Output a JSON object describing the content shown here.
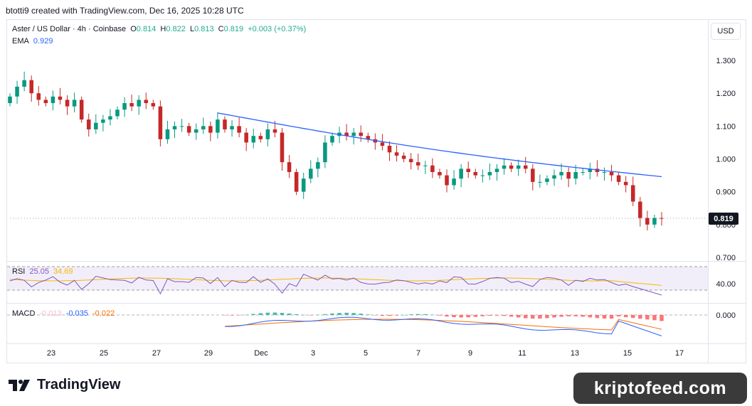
{
  "header": {
    "attribution": "btotti9 created with TradingView.com, Dec 16, 2025 10:28 UTC"
  },
  "legend": {
    "symbol": "Aster / US Dollar · 4h · Coinbase",
    "o_label": "O",
    "o_value": "0.814",
    "h_label": "H",
    "h_value": "0.822",
    "l_label": "L",
    "l_value": "0.813",
    "c_label": "C",
    "c_value": "0.819",
    "change": "+0.003 (+0.37%)",
    "ema_label": "EMA",
    "ema_value": "0.929"
  },
  "rsi_legend": {
    "label": "RSI",
    "value": "25.05",
    "ma_value": "34.69"
  },
  "macd_legend": {
    "label": "MACD",
    "hist_value": "-0.013",
    "macd_value": "-0.035",
    "signal_value": "-0.022"
  },
  "currency_button": "USD",
  "last_price": "0.819",
  "footer": {
    "logo_text": "TradingView",
    "watermark": "kriptofeed.com"
  },
  "colors": {
    "up": "#22ab94",
    "down": "#f23645",
    "up_candle": "#089981",
    "down_candle": "#c62828",
    "ema": "#2962ff",
    "rsi": "#7e57c2",
    "rsi_ma": "#f5b800",
    "macd": "#2962ff",
    "signal": "#ff6d00"
  },
  "chart_data": [
    {
      "type": "candlestick",
      "title": "Aster / US Dollar · 4h · Coinbase",
      "x_tick_labels": [
        "23",
        "25",
        "27",
        "29",
        "Dec",
        "3",
        "5",
        "7",
        "9",
        "11",
        "13",
        "15",
        "17"
      ],
      "y_tick_labels": [
        "1.300",
        "1.200",
        "1.100",
        "1.000",
        "0.900",
        "0.800",
        "0.700"
      ],
      "ylim": [
        0.7,
        1.3
      ],
      "close_series": [
        1.19,
        1.22,
        1.24,
        1.2,
        1.18,
        1.17,
        1.19,
        1.18,
        1.16,
        1.18,
        1.12,
        1.09,
        1.11,
        1.12,
        1.13,
        1.15,
        1.17,
        1.16,
        1.18,
        1.17,
        1.16,
        1.06,
        1.09,
        1.1,
        1.1,
        1.08,
        1.09,
        1.1,
        1.08,
        1.12,
        1.09,
        1.1,
        1.08,
        1.05,
        1.07,
        1.06,
        1.09,
        1.08,
        0.99,
        0.96,
        0.9,
        0.94,
        0.97,
        0.99,
        1.05,
        1.07,
        1.08,
        1.07,
        1.08,
        1.07,
        1.06,
        1.05,
        1.04,
        1.02,
        1.01,
        1.0,
        0.99,
        0.98,
        0.98,
        0.96,
        0.95,
        0.92,
        0.94,
        0.97,
        0.96,
        0.95,
        0.95,
        0.96,
        0.97,
        0.98,
        0.97,
        0.98,
        0.97,
        0.93,
        0.93,
        0.94,
        0.95,
        0.96,
        0.94,
        0.96,
        0.96,
        0.97,
        0.96,
        0.96,
        0.95,
        0.93,
        0.92,
        0.87,
        0.82,
        0.8,
        0.82,
        0.819
      ],
      "series": [
        {
          "name": "EMA",
          "value_at_last": 0.929,
          "start": 1.14,
          "end": 0.929
        }
      ],
      "last_price": 0.819
    },
    {
      "type": "line",
      "title": "RSI",
      "y_tick_labels": [
        "40.00"
      ],
      "series": [
        {
          "name": "RSI",
          "last": 25.05
        },
        {
          "name": "RSI MA",
          "last": 34.69
        }
      ]
    },
    {
      "type": "bar",
      "title": "MACD",
      "y_tick_labels": [
        "0.000"
      ],
      "series": [
        {
          "name": "Histogram",
          "last": -0.013
        },
        {
          "name": "MACD",
          "last": -0.035
        },
        {
          "name": "Signal",
          "last": -0.022
        }
      ]
    }
  ]
}
